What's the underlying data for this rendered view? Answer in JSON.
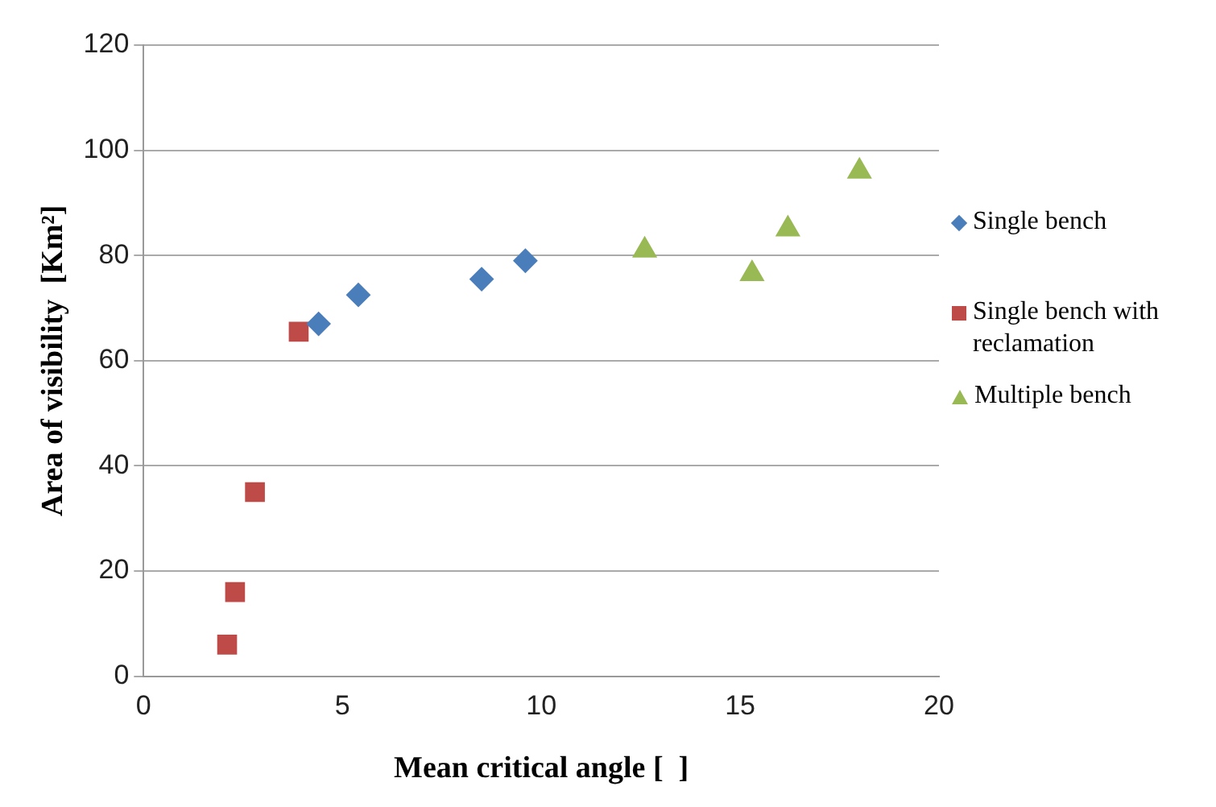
{
  "chart_data": {
    "type": "scatter",
    "xlabel": "Mean critical angle [  ]",
    "ylabel": "Area of visibility  [Km²]",
    "xlim": [
      0,
      20
    ],
    "xticks": [
      0,
      5,
      10,
      15,
      20
    ],
    "ylim": [
      0,
      120
    ],
    "yticks": [
      0,
      20,
      40,
      60,
      80,
      100,
      120
    ],
    "grid": "y",
    "legend": "right",
    "series": [
      {
        "name": "Single bench",
        "color": "#4a7ebb",
        "marker": "diamond",
        "x": [
          4.4,
          5.4,
          8.5,
          9.6
        ],
        "values": [
          67,
          72.5,
          75.5,
          79
        ]
      },
      {
        "name": "Single bench with reclamation",
        "color": "#be4b48",
        "marker": "square",
        "x": [
          2.1,
          2.3,
          2.8,
          3.9
        ],
        "values": [
          6,
          16,
          35,
          65.5
        ]
      },
      {
        "name": "Multiple bench",
        "color": "#98b954",
        "marker": "triangle",
        "x": [
          12.6,
          15.3,
          16.2,
          18
        ],
        "values": [
          81,
          76.5,
          85,
          96
        ]
      }
    ]
  }
}
